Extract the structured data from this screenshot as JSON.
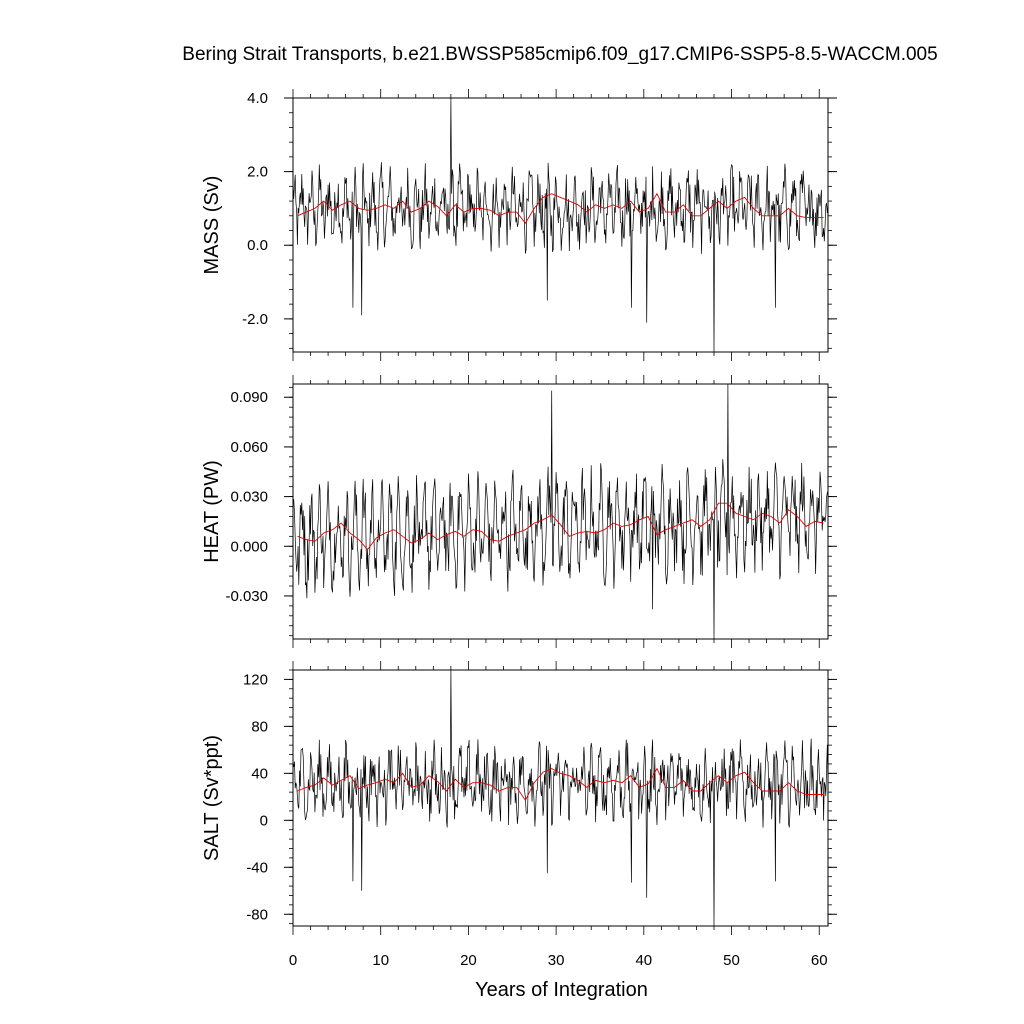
{
  "chart_data": {
    "title": "Bering Strait Transports, b.e21.BWSSP585cmip6.f09_g17.CMIP6-SSP5-8.5-WACCM.005",
    "xlabel": "Years of Integration",
    "xlim": [
      0,
      61
    ],
    "xticks": [
      0,
      10,
      20,
      30,
      40,
      50,
      60
    ],
    "xtick_labels": [
      "0",
      "10",
      "20",
      "30",
      "40",
      "50",
      "60"
    ],
    "panels": [
      {
        "type": "line",
        "ylabel": "MASS (Sv)",
        "ylim": [
          -2.9,
          4.0
        ],
        "yticks": [
          4.0,
          2.0,
          0.0,
          -2.0
        ],
        "ytick_labels": [
          "4.0",
          "2.0",
          "0.0",
          "-2.0"
        ],
        "series": [
          {
            "kind": "monthly",
            "color": "#000000",
            "mean": 1.0,
            "amp": 0.55,
            "noise": 0.45,
            "spikes": [
              [
                18.0,
                4.0
              ],
              [
                6.8,
                -1.7
              ],
              [
                7.8,
                -1.9
              ],
              [
                29.0,
                -1.5
              ],
              [
                38.6,
                -1.7
              ],
              [
                40.3,
                -2.1
              ],
              [
                48.0,
                -2.9
              ],
              [
                55.0,
                -1.7
              ]
            ]
          },
          {
            "kind": "annual",
            "color": "#e00000",
            "x": [
              0.5,
              1.5,
              2.5,
              3.5,
              4.5,
              5.5,
              6.5,
              7.5,
              8.5,
              9.5,
              10.5,
              11.5,
              12.5,
              13.5,
              14.5,
              15.5,
              16.5,
              17.5,
              18.5,
              19.5,
              20.5,
              21.5,
              22.5,
              23.5,
              24.5,
              25.5,
              26.5,
              27.5,
              28.5,
              29.5,
              30.5,
              31.5,
              32.5,
              33.5,
              34.5,
              35.5,
              36.5,
              37.5,
              38.5,
              39.5,
              40.5,
              41.5,
              42.5,
              43.5,
              44.5,
              45.5,
              46.5,
              47.5,
              48.5,
              49.5,
              50.5,
              51.5,
              52.5,
              53.5,
              54.5,
              55.5,
              56.5,
              57.5,
              58.5,
              59.5,
              60.5
            ],
            "values": [
              0.8,
              0.9,
              1.0,
              1.2,
              0.95,
              1.1,
              1.2,
              1.0,
              0.95,
              1.0,
              1.1,
              1.0,
              1.2,
              0.9,
              1.0,
              1.2,
              1.05,
              0.8,
              1.1,
              0.9,
              1.0,
              1.0,
              0.95,
              0.8,
              0.9,
              0.9,
              0.6,
              1.0,
              1.3,
              1.4,
              1.3,
              1.2,
              1.1,
              0.9,
              1.1,
              1.0,
              1.1,
              1.0,
              1.2,
              0.9,
              1.0,
              1.4,
              0.9,
              0.9,
              1.1,
              0.8,
              0.8,
              1.0,
              1.2,
              1.0,
              1.2,
              1.3,
              1.0,
              0.8,
              0.8,
              0.8,
              1.0,
              0.8,
              0.75,
              0.75,
              0.75
            ]
          }
        ]
      },
      {
        "type": "line",
        "ylabel": "HEAT (PW)",
        "ylim": [
          -0.056,
          0.098
        ],
        "yticks": [
          0.09,
          0.06,
          0.03,
          0.0,
          -0.03
        ],
        "ytick_labels": [
          "0.090",
          "0.060",
          "0.030",
          "0.000",
          "-0.030"
        ],
        "series": [
          {
            "kind": "monthly",
            "color": "#000000",
            "mean": 0.005,
            "amp": 0.02,
            "noise": 0.012,
            "trend": 0.00022,
            "spikes": [
              [
                29.5,
                0.094
              ],
              [
                41.0,
                -0.038
              ],
              [
                48.0,
                -0.056
              ],
              [
                49.6,
                0.098
              ]
            ]
          },
          {
            "kind": "annual",
            "color": "#e00000",
            "x": [
              0.5,
              1.5,
              2.5,
              3.5,
              4.5,
              5.5,
              6.5,
              7.5,
              8.5,
              9.5,
              10.5,
              11.5,
              12.5,
              13.5,
              14.5,
              15.5,
              16.5,
              17.5,
              18.5,
              19.5,
              20.5,
              21.5,
              22.5,
              23.5,
              24.5,
              25.5,
              26.5,
              27.5,
              28.5,
              29.5,
              30.5,
              31.5,
              32.5,
              33.5,
              34.5,
              35.5,
              36.5,
              37.5,
              38.5,
              39.5,
              40.5,
              41.5,
              42.5,
              43.5,
              44.5,
              45.5,
              46.5,
              47.5,
              48.5,
              49.5,
              50.5,
              51.5,
              52.5,
              53.5,
              54.5,
              55.5,
              56.5,
              57.5,
              58.5,
              59.5,
              60.5
            ],
            "values": [
              0.006,
              0.004,
              0.003,
              0.008,
              0.01,
              0.014,
              0.008,
              0.004,
              -0.002,
              0.005,
              0.008,
              0.01,
              0.006,
              0.002,
              0.004,
              0.008,
              0.004,
              0.007,
              0.009,
              0.006,
              0.01,
              0.009,
              0.004,
              0.003,
              0.006,
              0.008,
              0.01,
              0.014,
              0.016,
              0.019,
              0.013,
              0.006,
              0.008,
              0.009,
              0.008,
              0.01,
              0.014,
              0.012,
              0.013,
              0.016,
              0.018,
              0.007,
              0.01,
              0.012,
              0.014,
              0.016,
              0.012,
              0.016,
              0.026,
              0.026,
              0.02,
              0.018,
              0.016,
              0.02,
              0.018,
              0.014,
              0.022,
              0.018,
              0.012,
              0.015,
              0.014
            ]
          }
        ]
      },
      {
        "type": "line",
        "ylabel": "SALT (Sv*ppt)",
        "ylim": [
          -90,
          128
        ],
        "yticks": [
          120,
          80,
          40,
          0,
          -40,
          -80
        ],
        "ytick_labels": [
          "120",
          "80",
          "40",
          "0",
          "-40",
          "-80"
        ],
        "series": [
          {
            "kind": "monthly",
            "color": "#000000",
            "mean": 32,
            "amp": 16,
            "noise": 14,
            "spikes": [
              [
                18.0,
                128
              ],
              [
                6.8,
                -52
              ],
              [
                7.8,
                -60
              ],
              [
                29.0,
                -45
              ],
              [
                38.6,
                -53
              ],
              [
                40.3,
                -66
              ],
              [
                48.0,
                -90
              ],
              [
                55.0,
                -52
              ]
            ]
          },
          {
            "kind": "annual",
            "color": "#e00000",
            "x": [
              0.5,
              1.5,
              2.5,
              3.5,
              4.5,
              5.5,
              6.5,
              7.5,
              8.5,
              9.5,
              10.5,
              11.5,
              12.5,
              13.5,
              14.5,
              15.5,
              16.5,
              17.5,
              18.5,
              19.5,
              20.5,
              21.5,
              22.5,
              23.5,
              24.5,
              25.5,
              26.5,
              27.5,
              28.5,
              29.5,
              30.5,
              31.5,
              32.5,
              33.5,
              34.5,
              35.5,
              36.5,
              37.5,
              38.5,
              39.5,
              40.5,
              41.5,
              42.5,
              43.5,
              44.5,
              45.5,
              46.5,
              47.5,
              48.5,
              49.5,
              50.5,
              51.5,
              52.5,
              53.5,
              54.5,
              55.5,
              56.5,
              57.5,
              58.5,
              59.5,
              60.5
            ],
            "values": [
              25,
              28,
              30,
              36,
              30,
              34,
              38,
              27,
              30,
              32,
              35,
              32,
              40,
              28,
              30,
              38,
              33,
              25,
              35,
              28,
              32,
              32,
              30,
              25,
              28,
              28,
              17,
              32,
              41,
              44,
              40,
              38,
              34,
              28,
              34,
              32,
              34,
              32,
              38,
              28,
              31,
              44,
              28,
              28,
              34,
              25,
              25,
              32,
              38,
              32,
              38,
              41,
              32,
              25,
              25,
              25,
              32,
              25,
              22,
              22,
              22
            ]
          }
        ]
      }
    ]
  }
}
